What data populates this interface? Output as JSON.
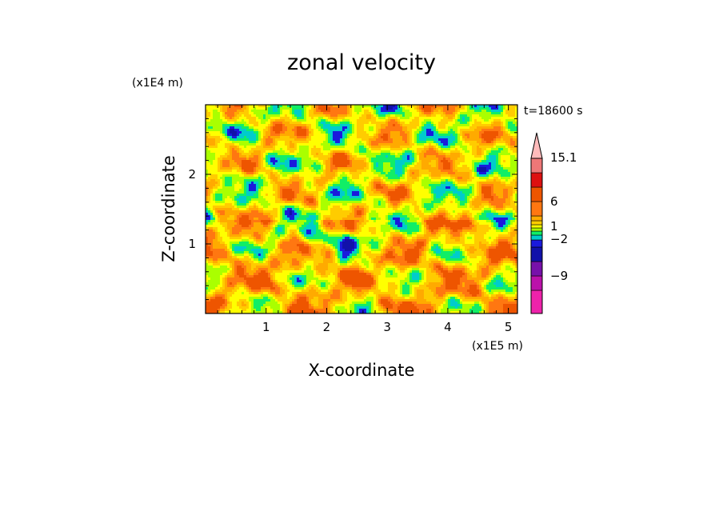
{
  "chart_data": {
    "type": "heatmap",
    "title": "zonal velocity",
    "xlabel": "X-coordinate",
    "ylabel": "Z-coordinate",
    "x_unit": "(x1E5 m)",
    "y_unit": "(x1E4 m)",
    "time_label": "t=18600 s",
    "xlim": [
      0.0,
      5.15
    ],
    "ylim": [
      0.0,
      3.0
    ],
    "x_ticks": [
      1,
      2,
      3,
      4,
      5
    ],
    "y_ticks": [
      1,
      2
    ],
    "colorbar": {
      "levels": [
        {
          "color": "#ee22aa"
        },
        {
          "color": "#bb11aa"
        },
        {
          "color": "#7711aa"
        },
        {
          "color": "#1111aa"
        },
        {
          "color": "#1a1add"
        },
        {
          "color": "#00cccc"
        },
        {
          "color": "#11ee66"
        },
        {
          "color": "#aaff00"
        },
        {
          "color": "#ffff00"
        },
        {
          "color": "#ffcc00"
        },
        {
          "color": "#ffaa00"
        },
        {
          "color": "#ff7711"
        },
        {
          "color": "#ee5500"
        },
        {
          "color": "#dd1111"
        },
        {
          "color": "#ee7777"
        },
        {
          "color": "#ffbbbb"
        }
      ],
      "label_values": [
        "15.1",
        "6",
        "1",
        "−2",
        "−9"
      ],
      "extend_max": true
    }
  }
}
